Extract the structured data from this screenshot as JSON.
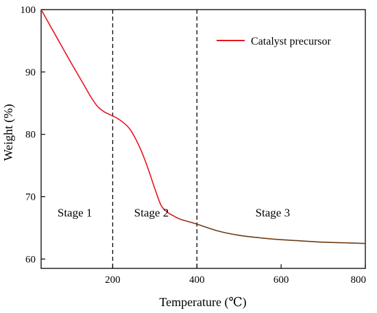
{
  "chart_data": {
    "type": "line",
    "xlabel": "Temperature (℃)",
    "ylabel": "Weight (%)",
    "xlim": [
      30,
      800
    ],
    "ylim": [
      58.5,
      100
    ],
    "x_ticks": [
      200,
      400,
      600,
      800
    ],
    "y_ticks": [
      60,
      70,
      80,
      90,
      100
    ],
    "grid": false,
    "legend": {
      "placement": "top-right"
    },
    "series": [
      {
        "name": "Catalyst precursor",
        "color_start": "#e8141b",
        "color_end": "#6b3a12",
        "x": [
          30,
          50,
          75,
          100,
          125,
          150,
          165,
          180,
          195,
          210,
          225,
          240,
          255,
          270,
          285,
          300,
          315,
          330,
          345,
          360,
          380,
          400,
          450,
          500,
          550,
          600,
          650,
          700,
          750,
          800
        ],
        "y": [
          100.0,
          97.6,
          94.6,
          91.6,
          88.7,
          85.8,
          84.4,
          83.6,
          83.1,
          82.6,
          81.9,
          80.9,
          79.2,
          77.0,
          74.3,
          71.3,
          68.6,
          67.5,
          66.9,
          66.4,
          66.0,
          65.6,
          64.5,
          63.8,
          63.4,
          63.1,
          62.9,
          62.7,
          62.6,
          62.5
        ]
      }
    ],
    "dividers": [
      200,
      400
    ],
    "annotations": [
      {
        "text": "Stage 1",
        "x": 110,
        "y": 66.8
      },
      {
        "text": "Stage 2",
        "x": 292,
        "y": 66.8
      },
      {
        "text": "Stage 3",
        "x": 580,
        "y": 66.8
      }
    ]
  }
}
